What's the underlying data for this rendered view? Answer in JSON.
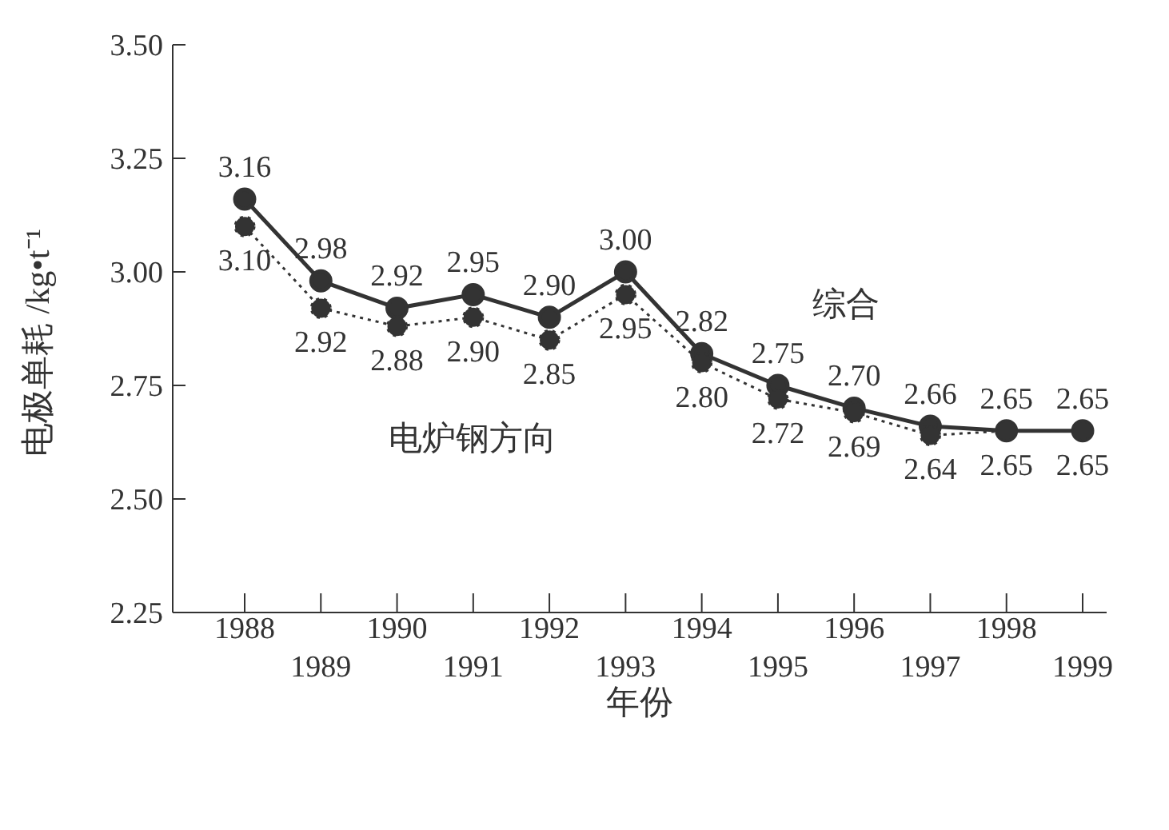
{
  "chart_data": {
    "type": "line",
    "xlabel": "年份",
    "ylabel": "电极单耗 /kg•t⁻¹",
    "categories": [
      "1988",
      "1989",
      "1990",
      "1991",
      "1992",
      "1993",
      "1994",
      "1995",
      "1996",
      "1997",
      "1998",
      "1999"
    ],
    "series": [
      {
        "name": "综合",
        "color": "#333333",
        "line_style": "solid",
        "values": [
          3.16,
          2.98,
          2.92,
          2.95,
          2.9,
          3.0,
          2.82,
          2.75,
          2.7,
          2.66,
          2.65,
          2.65
        ],
        "value_labels": [
          "3.16",
          "2.98",
          "2.92",
          "2.95",
          "2.90",
          "3.00",
          "2.82",
          "2.75",
          "2.70",
          "2.66",
          "2.65",
          "2.65"
        ]
      },
      {
        "name": "电炉钢方向",
        "color": "#333333",
        "line_style": "dotted",
        "values": [
          3.1,
          2.92,
          2.88,
          2.9,
          2.85,
          2.95,
          2.8,
          2.72,
          2.69,
          2.64,
          2.65,
          2.65
        ],
        "value_labels": [
          "3.10",
          "2.92",
          "2.88",
          "2.90",
          "2.85",
          "2.95",
          "2.80",
          "2.72",
          "2.69",
          "2.64",
          "2.65",
          "2.65"
        ]
      }
    ],
    "ylim": [
      2.25,
      3.5
    ],
    "yticks": [
      {
        "value": 2.25,
        "label": "2.25"
      },
      {
        "value": 2.5,
        "label": "2.50"
      },
      {
        "value": 2.75,
        "label": "2.75"
      },
      {
        "value": 3.0,
        "label": "3.00"
      },
      {
        "value": 3.25,
        "label": "3.25"
      },
      {
        "value": 3.5,
        "label": "3.50"
      }
    ],
    "marker": "circle",
    "legend": false,
    "grid": false
  }
}
